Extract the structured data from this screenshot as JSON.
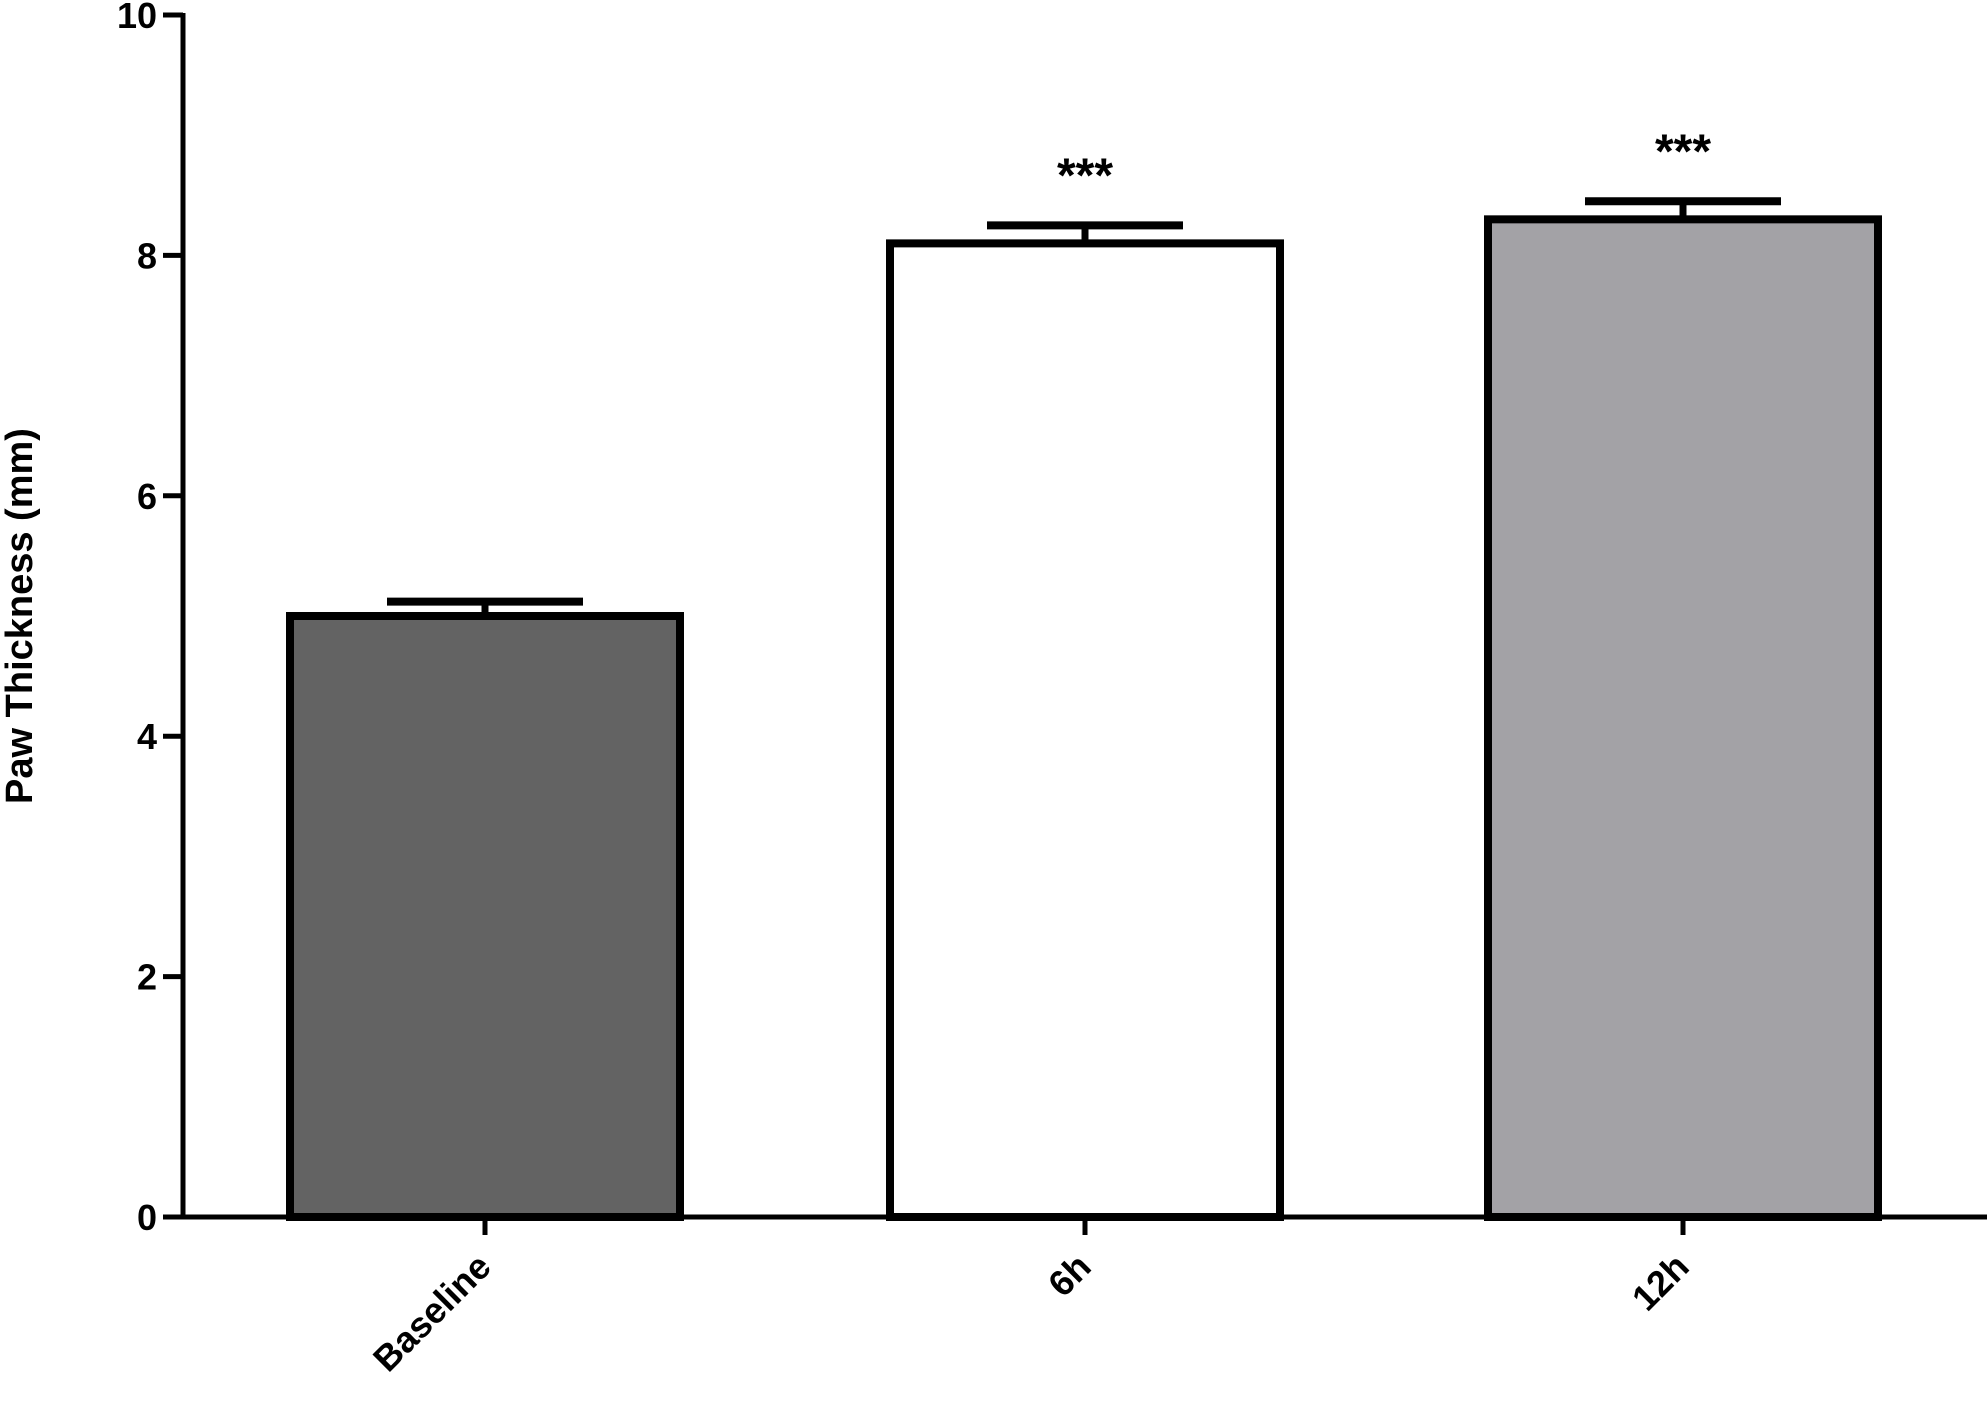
{
  "chart_data": {
    "type": "bar",
    "title": "",
    "xlabel": "",
    "ylabel": "Paw Thickness (mm)",
    "ylim": [
      0,
      10
    ],
    "yticks": [
      "0",
      "2",
      "4",
      "6",
      "8",
      "10"
    ],
    "categories": [
      "Baseline",
      "6h",
      "12h"
    ],
    "values": [
      5.0,
      8.1,
      8.3
    ],
    "errors": [
      0.12,
      0.15,
      0.15
    ],
    "annotations": [
      "",
      "***",
      "***"
    ],
    "bar_colors": [
      "#636363",
      "#ffffff",
      "#a3a2a6"
    ],
    "edge_color": "#000000",
    "grid": false,
    "legend": "none"
  }
}
